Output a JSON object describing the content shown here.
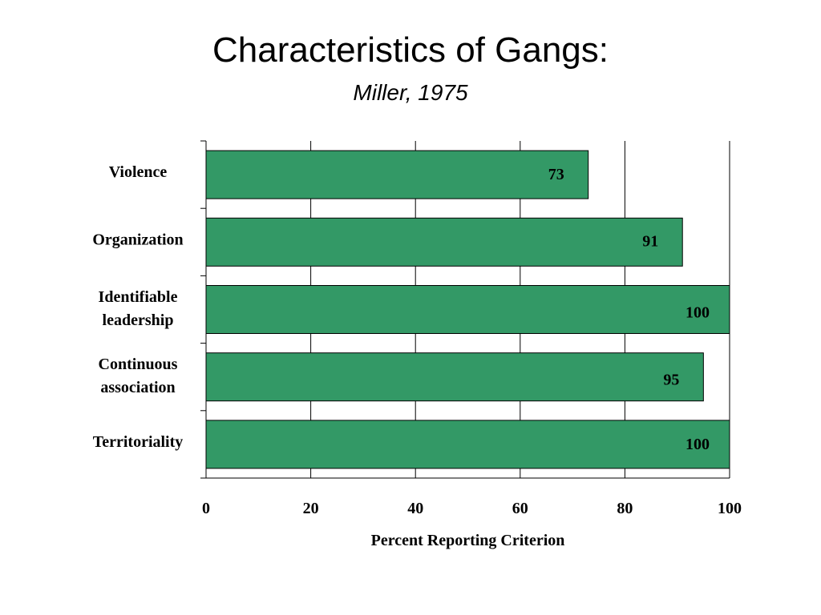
{
  "slide": {
    "title": "Characteristics of Gangs:",
    "subtitle": "Miller, 1975"
  },
  "chart_data": {
    "type": "bar",
    "orientation": "horizontal",
    "categories": [
      "Violence",
      "Organization",
      "Identifiable leadership",
      "Continuous association",
      "Territoriality"
    ],
    "category_label_lines": [
      [
        "Violence"
      ],
      [
        "Organization"
      ],
      [
        "Identifiable",
        "leadership"
      ],
      [
        "Continuous",
        "association"
      ],
      [
        "Territoriality"
      ]
    ],
    "values": [
      73,
      91,
      100,
      95,
      100
    ],
    "data_labels": [
      "73",
      "91",
      "100",
      "95",
      "100"
    ],
    "xlabel": "Percent Reporting Criterion",
    "ylabel": "",
    "xlim": [
      0,
      100
    ],
    "xticks": [
      0,
      20,
      40,
      60,
      80,
      100
    ],
    "grid": "vertical",
    "bar_color": "#339966",
    "legend": "none"
  }
}
